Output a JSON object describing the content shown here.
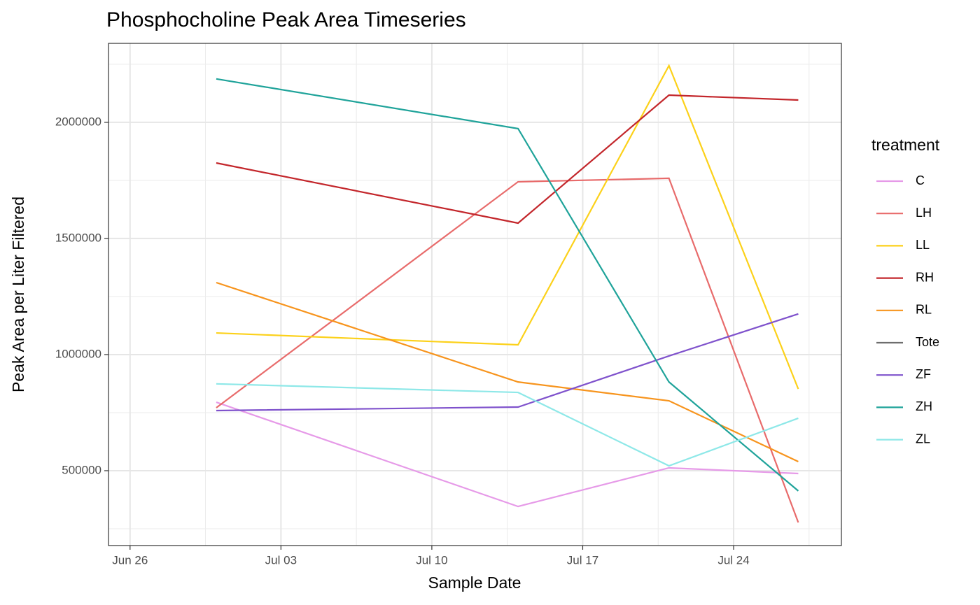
{
  "chart_data": {
    "type": "line",
    "title": "Phosphocholine Peak Area Timeseries",
    "x_label": "Sample Date",
    "y_label": "Peak Area per Liter Filtered",
    "legend_title": "treatment",
    "legend_position": "right",
    "x": [
      "06-30",
      "07-14",
      "07-21",
      "07-27"
    ],
    "xlim": [
      "06-25",
      "07-29"
    ],
    "xticks": [
      {
        "value": "06-26",
        "label": "Jun 26"
      },
      {
        "value": "07-03",
        "label": "Jul 03"
      },
      {
        "value": "07-10",
        "label": "Jul 10"
      },
      {
        "value": "07-17",
        "label": "Jul 17"
      },
      {
        "value": "07-24",
        "label": "Jul 24"
      }
    ],
    "ylim": [
      177700,
      2340000
    ],
    "yticks": [
      500000,
      1000000,
      1500000,
      2000000
    ],
    "yminor": [
      250000,
      750000,
      1250000,
      1750000,
      2250000
    ],
    "grid": true,
    "series": [
      {
        "name": "C",
        "color": "#e69ae8",
        "values": [
          795000,
          346000,
          512000,
          488000
        ]
      },
      {
        "name": "LH",
        "color": "#e86b6b",
        "values": [
          771000,
          1744000,
          1759000,
          277000
        ]
      },
      {
        "name": "LL",
        "color": "#fcd11a",
        "values": [
          1093000,
          1042000,
          2244000,
          852000
        ]
      },
      {
        "name": "RH",
        "color": "#c3262b",
        "values": [
          1825000,
          1566000,
          2117000,
          2096000
        ]
      },
      {
        "name": "RL",
        "color": "#f7941d",
        "values": [
          1310000,
          882000,
          801000,
          539000
        ]
      },
      {
        "name": "Tote",
        "color": "#6e6e6e",
        "values": [
          null,
          null,
          null,
          null
        ]
      },
      {
        "name": "ZF",
        "color": "#7f52cc",
        "values": [
          759000,
          774000,
          994000,
          1175000
        ]
      },
      {
        "name": "ZH",
        "color": "#1fa39a",
        "values": [
          2187000,
          1973000,
          882000,
          413000
        ]
      },
      {
        "name": "ZL",
        "color": "#8ee8e8",
        "values": [
          874000,
          837000,
          521000,
          726000
        ]
      }
    ]
  }
}
